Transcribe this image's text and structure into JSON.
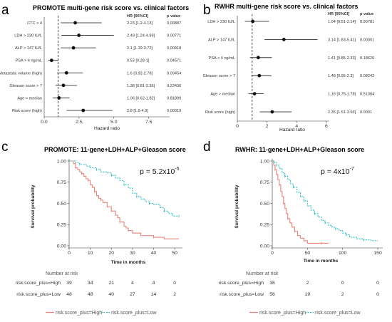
{
  "chart_data": [
    {
      "type": "forest",
      "panel_label": "a",
      "title": "PROMOTE multi-gene risk score vs. clinical factors",
      "col_hr": "HR [95%CI]",
      "col_p": "p value",
      "xlabel": "Hazard ratio",
      "xlim": [
        0,
        9
      ],
      "xticks": [
        "0.0",
        "2.5",
        "5.0",
        "7.5"
      ],
      "xtick_values": [
        0,
        2.5,
        5,
        7.5
      ],
      "ref_line": 1,
      "rows": [
        {
          "label": "CTC > 4",
          "hr": 2.23,
          "lo": 1.2,
          "hi": 4.13,
          "hr_text": "2.23 [1.2-4.13]",
          "p": "0.00887",
          "highlight": false
        },
        {
          "label": "LDH > 230 IU/L",
          "hr": 2.49,
          "lo": 1.24,
          "hi": 4.99,
          "hr_text": "2.49 [1.24-4.99]",
          "p": "0.00771",
          "highlight": false
        },
        {
          "label": "ALP > 147 IU/L",
          "hr": 2.1,
          "lo": 1.19,
          "hi": 3.72,
          "hr_text": "2.1 [1.19-3.72]",
          "p": "0.00918",
          "highlight": false
        },
        {
          "label": "PSA > 4 ng/mL",
          "hr": 0.53,
          "lo": 0.28,
          "hi": 1,
          "hr_text": "0.53 [0.28-1]",
          "p": "0.04571",
          "highlight": false
        },
        {
          "label": "Metastatic volume (high)",
          "hr": 1.6,
          "lo": 0.92,
          "hi": 2.78,
          "hr_text": "1.6 [0.92-2.78]",
          "p": "0.09454",
          "highlight": false
        },
        {
          "label": "Gleason score > 7",
          "hr": 1.38,
          "lo": 0.81,
          "hi": 2.36,
          "hr_text": "1.38 [0.81-2.36]",
          "p": "0.23436",
          "highlight": false
        },
        {
          "label": "Age > median",
          "hr": 1.06,
          "lo": 0.62,
          "hi": 1.82,
          "hr_text": "1.06 [0.62-1.82]",
          "p": "0.81899",
          "highlight": false
        },
        {
          "label": "Risk score (high)",
          "hr": 2.8,
          "lo": 1.6,
          "hi": 4.9,
          "hr_text": "2.8 [1.6-4.9]",
          "p": "0.00019",
          "highlight": true
        }
      ]
    },
    {
      "type": "forest",
      "panel_label": "b",
      "title": "RWHR multi-gene risk score vs. clinical factors",
      "col_hr": "HR [95%CI]",
      "col_p": "p value",
      "xlabel": "Hazard ratio",
      "xlim": [
        0,
        6.2
      ],
      "xticks": [
        "0",
        "2",
        "4",
        "6"
      ],
      "xtick_values": [
        0,
        2,
        4,
        6
      ],
      "ref_line": 1,
      "rows": [
        {
          "label": "LDH > 230 IU/L",
          "hr": 1.04,
          "lo": 0.51,
          "hi": 2.14,
          "hr_text": "1.04 [0.51-2.14]",
          "p": "0.90781",
          "highlight": false
        },
        {
          "label": "ALP > 147 IU/L",
          "hr": 3.14,
          "lo": 1.83,
          "hi": 5.41,
          "hr_text": "3.14 [1.83-5.41]",
          "p": "0.00001",
          "highlight": true
        },
        {
          "label": "PSA > 4 ng/mL",
          "hr": 1.41,
          "lo": 0.85,
          "hi": 2.33,
          "hr_text": "1.41 [0.85-2.33]",
          "p": "0.18626",
          "highlight": false
        },
        {
          "label": "Gleason score > 7",
          "hr": 1.48,
          "lo": 0.95,
          "hi": 2.3,
          "hr_text": "1.48 [0.95-2.3]",
          "p": "0.08242",
          "highlight": false
        },
        {
          "label": "Age > median",
          "hr": 1.16,
          "lo": 0.75,
          "hi": 1.78,
          "hr_text": "1.16 [0.75-1.78]",
          "p": "0.51084",
          "highlight": false
        },
        {
          "label": "Risk score (high)",
          "hr": 2.35,
          "lo": 1.51,
          "hi": 3.66,
          "hr_text": "2.35 [1.51-3.66]",
          "p": "0.0001",
          "highlight": true
        }
      ]
    },
    {
      "type": "kaplan-meier",
      "panel_label": "c",
      "title": "PROMOTE: 11-gene+LDH+ALP+Gleason score",
      "ylabel": "Survival probability",
      "xlabel": "Time in months",
      "xlim": [
        0,
        53
      ],
      "ylim": [
        0,
        1
      ],
      "xticks": [
        0,
        10,
        20,
        30,
        40,
        50
      ],
      "yticks": [
        "0.00",
        "0.25",
        "0.50",
        "0.75",
        "1.00"
      ],
      "ytick_values": [
        0,
        0.25,
        0.5,
        0.75,
        1
      ],
      "pvalue_base": "p = 5.2x10",
      "pvalue_exp": "-5",
      "series": [
        {
          "name": "risk.score_plus=High",
          "color": "#e8837b",
          "dashed": false,
          "x": [
            0,
            2,
            3,
            4,
            5,
            6,
            7,
            8,
            9,
            10,
            11,
            12,
            13,
            14,
            15,
            16,
            18,
            20,
            22,
            23,
            24,
            26,
            27,
            28,
            30,
            34,
            40,
            45,
            52
          ],
          "y": [
            1,
            0.97,
            0.92,
            0.9,
            0.87,
            0.85,
            0.82,
            0.79,
            0.77,
            0.72,
            0.69,
            0.64,
            0.59,
            0.56,
            0.54,
            0.51,
            0.46,
            0.41,
            0.36,
            0.33,
            0.28,
            0.23,
            0.21,
            0.18,
            0.15,
            0.12,
            0.1,
            0.08,
            0.08
          ]
        },
        {
          "name": "risk.score_plus=Low",
          "color": "#2bbcc0",
          "dashed": true,
          "x": [
            0,
            3,
            5,
            8,
            10,
            13,
            15,
            18,
            20,
            22,
            24,
            26,
            28,
            30,
            32,
            34,
            36,
            38,
            40,
            43,
            45,
            47,
            49,
            52
          ],
          "y": [
            1,
            0.98,
            0.96,
            0.94,
            0.92,
            0.9,
            0.87,
            0.86,
            0.83,
            0.8,
            0.77,
            0.72,
            0.68,
            0.62,
            0.58,
            0.55,
            0.52,
            0.5,
            0.49,
            0.45,
            0.41,
            0.38,
            0.35,
            0.35
          ]
        }
      ],
      "risk_table": {
        "header": "Number at risk",
        "times": [
          0,
          10,
          20,
          30,
          40,
          50
        ],
        "rows": [
          {
            "name": "risk.score_plus=High",
            "color": "#e8837b",
            "values": [
              39,
              34,
              21,
              4,
              4,
              0
            ]
          },
          {
            "name": "risk.score_plus=Low",
            "color": "#2bbcc0",
            "values": [
              48,
              48,
              40,
              27,
              14,
              2
            ]
          }
        ]
      },
      "legend": [
        "risk.score_plus=High",
        "risk.score_plus=Low"
      ]
    },
    {
      "type": "kaplan-meier",
      "panel_label": "d",
      "title": "RWHR: 11-gene+LDH+ALP+Gleason score",
      "ylabel": "Survival probability",
      "xlabel": "Time in months",
      "xlim": [
        0,
        155
      ],
      "ylim": [
        0,
        1
      ],
      "xticks": [
        0,
        50,
        100,
        150
      ],
      "yticks": [
        "0.00",
        "0.25",
        "0.50",
        "0.75",
        "1.00"
      ],
      "ytick_values": [
        0,
        0.25,
        0.5,
        0.75,
        1
      ],
      "pvalue_base": "p = 4x10",
      "pvalue_exp": "-7",
      "series": [
        {
          "name": "risk.score_plus=High",
          "color": "#e8837b",
          "dashed": false,
          "x": [
            0,
            2,
            4,
            6,
            8,
            10,
            12,
            14,
            16,
            18,
            20,
            22,
            25,
            28,
            32,
            36,
            40,
            45,
            50,
            60,
            70,
            80
          ],
          "y": [
            1,
            0.95,
            0.9,
            0.84,
            0.78,
            0.72,
            0.64,
            0.58,
            0.5,
            0.44,
            0.38,
            0.32,
            0.27,
            0.22,
            0.17,
            0.12,
            0.09,
            0.06,
            0.03,
            0.03,
            0.03,
            0.03
          ]
        },
        {
          "name": "risk.score_plus=Low",
          "color": "#2bbcc0",
          "dashed": true,
          "x": [
            0,
            3,
            6,
            10,
            14,
            18,
            22,
            26,
            30,
            35,
            40,
            45,
            50,
            55,
            60,
            65,
            70,
            75,
            80,
            85,
            90,
            95,
            100,
            105,
            110,
            120,
            130,
            140,
            150
          ],
          "y": [
            1,
            0.98,
            0.95,
            0.91,
            0.86,
            0.82,
            0.78,
            0.73,
            0.69,
            0.63,
            0.58,
            0.53,
            0.47,
            0.42,
            0.38,
            0.34,
            0.3,
            0.27,
            0.24,
            0.22,
            0.2,
            0.18,
            0.15,
            0.13,
            0.1,
            0.08,
            0.07,
            0.06,
            0.06
          ]
        }
      ],
      "risk_table": {
        "header": "Number at risk",
        "times": [
          0,
          50,
          100,
          150
        ],
        "rows": [
          {
            "name": "risk.score_plus=High",
            "color": "#e8837b",
            "values": [
              36,
              2,
              0,
              0
            ]
          },
          {
            "name": "risk.score_plus=Low",
            "color": "#2bbcc0",
            "values": [
              56,
              19,
              2,
              0
            ]
          }
        ]
      },
      "legend": [
        "risk.score_plus=High",
        "risk.score_plus=Low"
      ]
    }
  ]
}
